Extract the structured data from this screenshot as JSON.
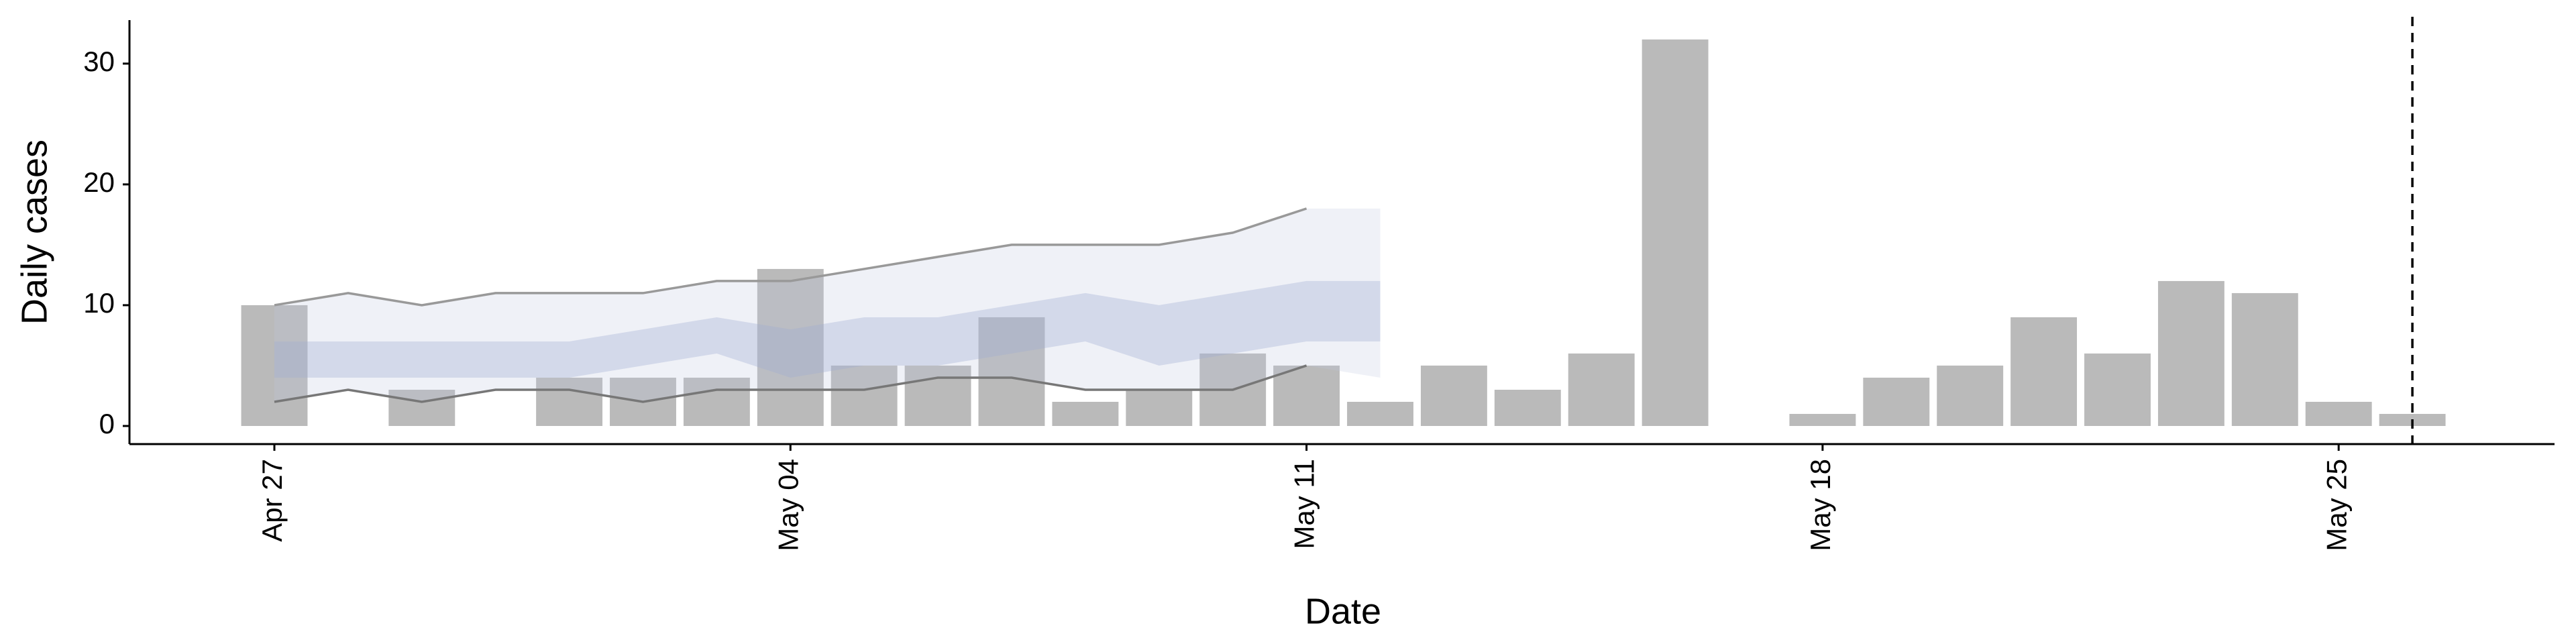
{
  "chart_data": {
    "type": "bar",
    "x_label": "Date",
    "y_label": "Daily cases",
    "categories": [
      "Apr 27",
      null,
      null,
      null,
      null,
      null,
      null,
      "May 04",
      null,
      null,
      null,
      null,
      null,
      null,
      "May 11",
      null,
      null,
      null,
      null,
      null,
      null,
      "May 18",
      null,
      null,
      null,
      null,
      null,
      null,
      "May 25",
      null
    ],
    "values": [
      10,
      0,
      3,
      0,
      4,
      4,
      4,
      13,
      5,
      5,
      9,
      2,
      3,
      6,
      5,
      2,
      5,
      3,
      6,
      32,
      0,
      1,
      4,
      5,
      9,
      6,
      12,
      11,
      2,
      1
    ],
    "color": "#bababa",
    "bands": [
      {
        "color": "rgba(190,198,225,0.25)",
        "lower": [
          2,
          3,
          2,
          3,
          3,
          2,
          3,
          3,
          3,
          4,
          4,
          3,
          3,
          3,
          5,
          4
        ],
        "upper": [
          10,
          11,
          10,
          11,
          11,
          11,
          12,
          12,
          13,
          14,
          15,
          15,
          15,
          16,
          18,
          18
        ]
      },
      {
        "color": "rgba(160,172,210,0.35)",
        "lower": [
          4,
          4,
          4,
          4,
          4,
          5,
          6,
          4,
          5,
          5,
          6,
          7,
          5,
          6,
          7,
          7
        ],
        "upper": [
          7,
          7,
          7,
          7,
          7,
          8,
          9,
          8,
          9,
          9,
          10,
          11,
          10,
          11,
          12,
          12
        ]
      }
    ],
    "lines": [
      {
        "color": "#999999",
        "values": [
          10,
          11,
          10,
          11,
          11,
          11,
          12,
          12,
          13,
          14,
          15,
          15,
          15,
          16,
          18
        ]
      },
      {
        "color": "#777777",
        "values": [
          2,
          3,
          2,
          3,
          3,
          2,
          3,
          3,
          3,
          4,
          4,
          3,
          3,
          3,
          5
        ]
      }
    ],
    "vline_x": 29,
    "ylim": [
      -1.5,
      33.6
    ],
    "yticks": [
      0,
      10,
      20,
      30
    ]
  }
}
